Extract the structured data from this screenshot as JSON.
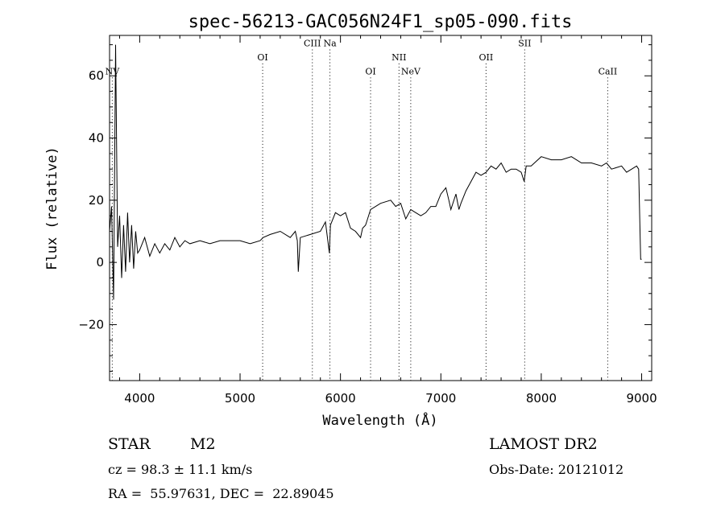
{
  "chart_data": {
    "type": "line",
    "title": "spec-56213-GAC056N24F1_sp05-090.fits",
    "xlabel": "Wavelength (Å)",
    "ylabel": "Flux (relative)",
    "xlim": [
      3700,
      9100
    ],
    "ylim": [
      -38,
      73
    ],
    "xticks": [
      4000,
      5000,
      6000,
      7000,
      8000,
      9000
    ],
    "yticks": [
      -20,
      0,
      20,
      40,
      60
    ],
    "xtick_labels": [
      "4000",
      "5000",
      "6000",
      "7000",
      "8000",
      "9000"
    ],
    "ytick_labels": [
      "−20",
      "0",
      "20",
      "40",
      "60"
    ],
    "grid": false,
    "legend": "none",
    "line_color": "#000000",
    "spectral_lines": [
      {
        "name": "NV",
        "wavelength": 3727,
        "label_level": 60.5
      },
      {
        "name": "OI",
        "wavelength": 5225,
        "label_level": 65
      },
      {
        "name": "CIII",
        "wavelength": 5720,
        "label_level": 69.5
      },
      {
        "name": "Na",
        "wavelength": 5895,
        "label_level": 69.5
      },
      {
        "name": "OI",
        "wavelength": 6300,
        "label_level": 60.5
      },
      {
        "name": "NII",
        "wavelength": 6583,
        "label_level": 65
      },
      {
        "name": "NeV",
        "wavelength": 6700,
        "label_level": 60.5
      },
      {
        "name": "OII",
        "wavelength": 7450,
        "label_level": 65
      },
      {
        "name": "SII",
        "wavelength": 7835,
        "label_level": 69.5
      },
      {
        "name": "CaII",
        "wavelength": 8662,
        "label_level": 60.5
      }
    ],
    "series": [
      {
        "x": [
          3700,
          3720,
          3740,
          3760,
          3780,
          3800,
          3820,
          3840,
          3860,
          3880,
          3900,
          3920,
          3940,
          3960,
          3980,
          4000,
          4050,
          4100,
          4150,
          4200,
          4250,
          4300,
          4350,
          4400,
          4450,
          4500,
          4600,
          4700,
          4800,
          4900,
          5000,
          5100,
          5200,
          5230,
          5300,
          5400,
          5500,
          5550,
          5570,
          5580,
          5600,
          5700,
          5800,
          5850,
          5890,
          5900,
          5950,
          6000,
          6050,
          6100,
          6150,
          6200,
          6220,
          6250,
          6260,
          6300,
          6400,
          6500,
          6550,
          6600,
          6650,
          6700,
          6750,
          6800,
          6850,
          6900,
          6950,
          7000,
          7050,
          7080,
          7100,
          7150,
          7180,
          7200,
          7250,
          7300,
          7350,
          7400,
          7450,
          7500,
          7550,
          7600,
          7650,
          7700,
          7750,
          7800,
          7830,
          7850,
          7900,
          8000,
          8100,
          8200,
          8300,
          8350,
          8400,
          8500,
          8600,
          8650,
          8700,
          8800,
          8850,
          8900,
          8950,
          8970,
          8990,
          9000
        ],
        "y": [
          10,
          18,
          -12,
          70,
          5,
          15,
          -5,
          12,
          -3,
          16,
          0,
          12,
          -2,
          10,
          3,
          4,
          8,
          2,
          6,
          3,
          6,
          4,
          8,
          5,
          7,
          6,
          7,
          6,
          7,
          7,
          7,
          6,
          7,
          8,
          9,
          10,
          8,
          10,
          7,
          -3,
          8,
          9,
          10,
          13,
          3,
          12,
          16,
          15,
          16,
          11,
          10,
          8,
          11,
          12,
          13,
          17,
          19,
          20,
          18,
          19,
          14,
          17,
          16,
          15,
          16,
          18,
          18,
          22,
          24,
          20,
          17,
          22,
          17,
          19,
          23,
          26,
          29,
          28,
          29,
          31,
          30,
          32,
          29,
          30,
          30,
          29,
          26,
          31,
          31,
          34,
          33,
          33,
          34,
          33,
          32,
          32,
          31,
          32,
          30,
          31,
          29,
          30,
          31,
          30,
          1,
          1
        ]
      }
    ]
  },
  "info": {
    "object_class": "STAR",
    "subclass": "M2",
    "survey": "LAMOST DR2",
    "cz_line": "cz = 98.3 ± 11.1 km/s",
    "obs_date_line": "Obs-Date: 20121012",
    "radec_line": "RA =  55.97631, DEC =  22.89045"
  }
}
